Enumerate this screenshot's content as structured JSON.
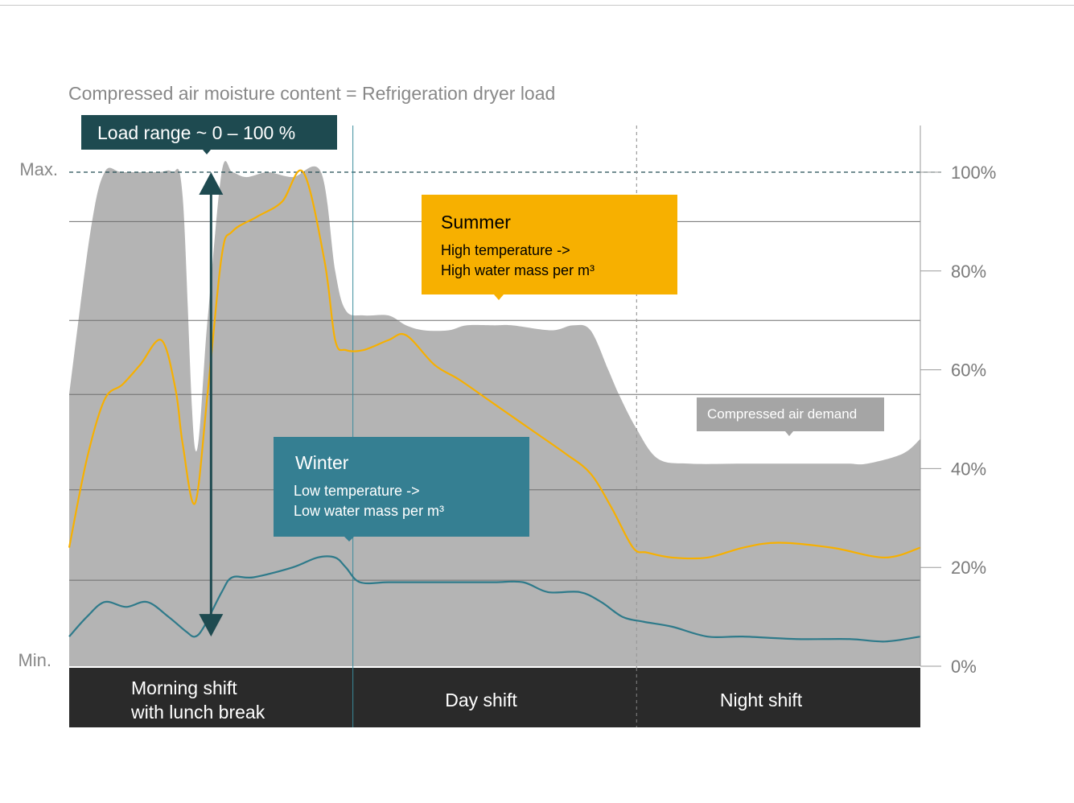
{
  "chart_data": {
    "type": "area",
    "title": "Compressed air moisture content = Refrigeration dryer load",
    "y_axis_right": {
      "ticks": [
        "100%",
        "80%",
        "60%",
        "40%",
        "20%",
        "0%"
      ],
      "tick_values": [
        100,
        80,
        60,
        40,
        20,
        0
      ],
      "ylim": [
        0,
        100
      ]
    },
    "y_axis_left": {
      "max_label": "Max.",
      "min_label": "Min."
    },
    "xlim": [
      0,
      24
    ],
    "series": [
      {
        "name": "Compressed air demand",
        "type": "area",
        "color": "#b4b4b4",
        "x": [
          0,
          0.6,
          1.0,
          1.5,
          2.5,
          2.9,
          3.2,
          3.55,
          3.9,
          4.3,
          4.6,
          5.0,
          5.6,
          6.3,
          7.1,
          7.5,
          7.8,
          8.3,
          9.0,
          9.5,
          10.0,
          10.7,
          11.2,
          12.0,
          12.5,
          13.6,
          14.2,
          14.7,
          15.2,
          15.5,
          16.0,
          16.6,
          17.5,
          19.0,
          20.5,
          21.5,
          22.0,
          22.5,
          23.5,
          24
        ],
        "y": [
          55,
          88,
          100,
          100,
          100,
          100,
          95,
          44,
          70,
          100,
          100,
          99,
          100,
          99,
          100,
          80,
          72,
          71,
          71,
          69,
          68,
          68,
          69,
          69,
          69,
          68,
          69,
          68,
          60,
          55,
          48,
          42,
          41,
          41,
          41,
          41,
          41,
          41,
          43,
          46
        ]
      },
      {
        "name": "Summer",
        "type": "line",
        "color": "#f7b000",
        "x": [
          0,
          0.5,
          1.0,
          1.5,
          2.0,
          2.6,
          3.0,
          3.2,
          3.55,
          3.9,
          4.3,
          4.6,
          5.3,
          6.0,
          6.6,
          7.2,
          7.5,
          7.8,
          8.3,
          9.0,
          9.5,
          10.3,
          11.0,
          12.0,
          13.0,
          14.0,
          14.7,
          15.3,
          15.9,
          16.3,
          17.0,
          18.0,
          19.0,
          20.0,
          21.5,
          23.0,
          24
        ],
        "y": [
          24,
          42,
          54,
          57,
          61,
          66,
          56,
          45,
          33,
          55,
          83,
          88,
          91,
          94,
          100,
          82,
          66,
          64,
          64,
          66,
          67,
          61,
          58,
          53,
          48,
          43,
          39,
          32,
          24,
          23,
          22,
          22,
          24,
          25,
          24,
          22,
          24
        ]
      },
      {
        "name": "Winter",
        "type": "line",
        "color": "#2e7a8a",
        "x": [
          0,
          0.5,
          1.0,
          1.6,
          2.2,
          2.8,
          3.3,
          3.55,
          3.8,
          4.3,
          4.6,
          5.2,
          6.3,
          7.0,
          7.5,
          7.8,
          8.2,
          9.0,
          10.0,
          11.0,
          12.0,
          12.8,
          13.5,
          14.4,
          15.0,
          15.6,
          16.2,
          17.0,
          18.0,
          19.0,
          20.5,
          22.0,
          23.0,
          24
        ],
        "y": [
          6,
          10,
          13,
          12,
          13,
          10,
          7,
          6,
          8,
          15,
          18,
          18,
          20,
          22,
          22,
          20,
          17,
          17,
          17,
          17,
          17,
          17,
          15,
          15,
          13,
          10,
          9,
          8,
          6,
          6,
          5.5,
          5.5,
          5,
          6
        ]
      }
    ],
    "segments": [
      {
        "name": "Morning shift with lunch break",
        "lines": [
          "Morning shift",
          "with lunch break"
        ],
        "x_start": 0,
        "x_end": 8
      },
      {
        "name": "Day shift",
        "lines": [
          "Day shift"
        ],
        "x_start": 8,
        "x_end": 16
      },
      {
        "name": "Night shift",
        "lines": [
          "Night shift"
        ],
        "x_start": 16,
        "x_end": 24
      }
    ],
    "annotations": {
      "load_range": {
        "label": "Load range ~ 0 – 100 %",
        "from": 6,
        "to": 100,
        "x": 4
      },
      "summer": {
        "title": "Summer",
        "lines": [
          "High temperature ->",
          "High water mass per m³"
        ],
        "color": "#f7b000"
      },
      "winter": {
        "title": "Winter",
        "lines": [
          "Low temperature ->",
          "Low water mass per m³"
        ],
        "color": "#357f92"
      },
      "demand": {
        "label": "Compressed air demand"
      }
    },
    "max_reference_line": 100,
    "shift_divider_x": [
      8,
      16
    ],
    "colors": {
      "gridline": "#6e6e6e",
      "axis_text": "#7a7a7a",
      "shift_band": "#2a2a2a",
      "load_box": "#1e4a50",
      "arrow": "#1e4a50"
    }
  }
}
